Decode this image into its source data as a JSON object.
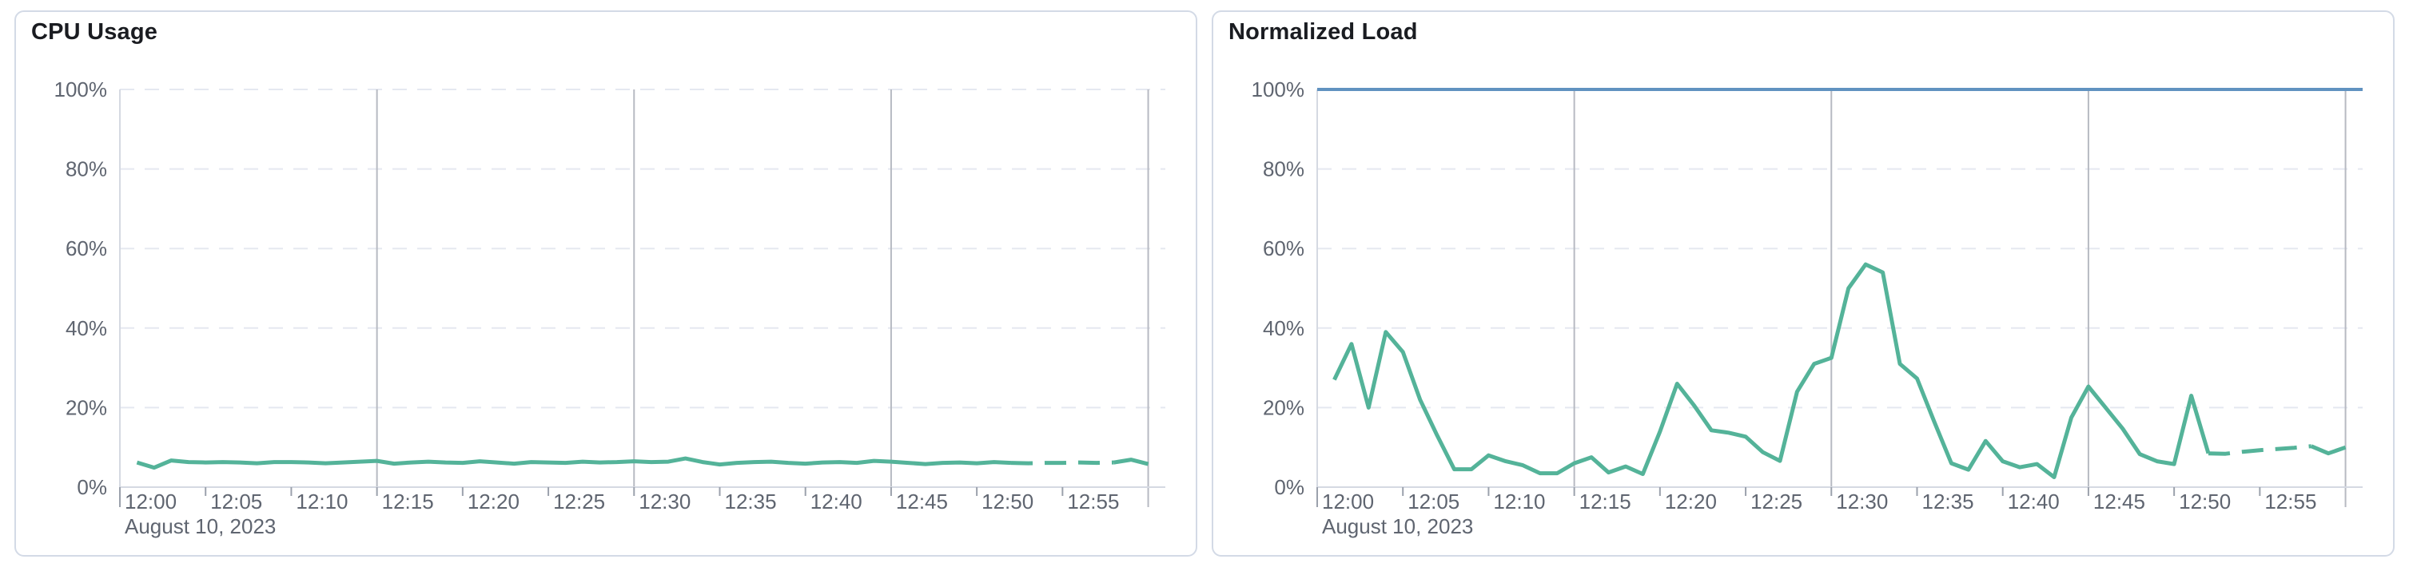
{
  "colors": {
    "accent_green": "#54B399",
    "limit_blue": "#6092C0",
    "grid_dashed": "#E5E8F0",
    "grid_major": "#B7BAC2",
    "axis_line": "#D5D9E2",
    "tick": "#9BA1AC",
    "label_text": "#5F6570",
    "title_text": "#1A1C21",
    "panel_border": "#D3DAE6"
  },
  "chart_data": [
    {
      "type": "line",
      "title": "CPU Usage",
      "x_date_label": "August 10, 2023",
      "x_unit": "minutes after 12:00",
      "x_domain_minutes": [
        0,
        61
      ],
      "ylim": [
        0,
        100
      ],
      "y_ticks": [
        0,
        20,
        40,
        60,
        80,
        100
      ],
      "y_tick_labels": [
        "0%",
        "20%",
        "40%",
        "60%",
        "80%",
        "100%"
      ],
      "x_tick_minutes": [
        0,
        5,
        10,
        15,
        20,
        25,
        30,
        35,
        40,
        45,
        50,
        55
      ],
      "x_tick_labels": [
        "12:00",
        "12:05",
        "12:10",
        "12:15",
        "12:20",
        "12:25",
        "12:30",
        "12:35",
        "12:40",
        "12:45",
        "12:50",
        "12:55"
      ],
      "major_gridline_minutes": [
        15,
        30,
        45,
        60
      ],
      "grid": "horizontal-dashed",
      "legend": "none",
      "series": [
        {
          "name": "cpu-usage",
          "color": "#54B399",
          "x_minutes": [
            1,
            2,
            3,
            4,
            5,
            6,
            7,
            8,
            9,
            10,
            11,
            12,
            13,
            14,
            15,
            16,
            17,
            18,
            19,
            20,
            21,
            22,
            23,
            24,
            25,
            26,
            27,
            28,
            29,
            30,
            31,
            32,
            33,
            34,
            35,
            36,
            37,
            38,
            39,
            40,
            41,
            42,
            43,
            44,
            45,
            46,
            47,
            48,
            49,
            50,
            51,
            52,
            53,
            54,
            55,
            56,
            57,
            58,
            59,
            60
          ],
          "values": [
            6.2,
            4.9,
            6.7,
            6.3,
            6.2,
            6.3,
            6.2,
            6.0,
            6.3,
            6.3,
            6.2,
            6.0,
            6.2,
            6.4,
            6.6,
            5.9,
            6.2,
            6.4,
            6.2,
            6.1,
            6.5,
            6.2,
            5.9,
            6.3,
            6.2,
            6.1,
            6.4,
            6.2,
            6.3,
            6.5,
            6.3,
            6.4,
            7.2,
            6.3,
            5.7,
            6.1,
            6.3,
            6.4,
            6.1,
            5.9,
            6.2,
            6.3,
            6.1,
            6.6,
            6.4,
            6.1,
            5.8,
            6.1,
            6.2,
            6.0,
            6.3,
            6.1,
            6.0,
            6.1,
            6.1,
            6.2,
            6.1,
            6.2,
            6.9,
            5.8
          ],
          "segments": [
            {
              "from_minute": 1,
              "to_minute": 52,
              "dashed": false
            },
            {
              "from_minute": 52,
              "to_minute": 58,
              "dashed": true
            },
            {
              "from_minute": 58,
              "to_minute": 60,
              "dashed": false
            }
          ]
        }
      ]
    },
    {
      "type": "line",
      "title": "Normalized Load",
      "x_date_label": "August 10, 2023",
      "x_unit": "minutes after 12:00",
      "x_domain_minutes": [
        0,
        61
      ],
      "ylim": [
        0,
        100
      ],
      "y_ticks": [
        0,
        20,
        40,
        60,
        80,
        100
      ],
      "y_tick_labels": [
        "0%",
        "20%",
        "40%",
        "60%",
        "80%",
        "100%"
      ],
      "x_tick_minutes": [
        0,
        5,
        10,
        15,
        20,
        25,
        30,
        35,
        40,
        45,
        50,
        55
      ],
      "x_tick_labels": [
        "12:00",
        "12:05",
        "12:10",
        "12:15",
        "12:20",
        "12:25",
        "12:30",
        "12:35",
        "12:40",
        "12:45",
        "12:50",
        "12:55"
      ],
      "major_gridline_minutes": [
        15,
        30,
        45,
        60
      ],
      "grid": "horizontal-dashed",
      "legend": "none",
      "series": [
        {
          "name": "normalized-load",
          "color": "#54B399",
          "x_minutes": [
            1,
            2,
            3,
            4,
            5,
            6,
            7,
            8,
            9,
            10,
            11,
            12,
            13,
            14,
            15,
            16,
            17,
            18,
            19,
            20,
            21,
            22,
            23,
            24,
            25,
            26,
            27,
            28,
            29,
            30,
            31,
            32,
            33,
            34,
            35,
            36,
            37,
            38,
            39,
            40,
            41,
            42,
            43,
            44,
            45,
            46,
            47,
            48,
            49,
            50,
            51,
            52,
            53,
            54,
            55,
            56,
            57,
            58,
            59,
            60
          ],
          "values": [
            27,
            36,
            20,
            39,
            34,
            22,
            13,
            4.5,
            4.5,
            8,
            6.5,
            5.5,
            3.5,
            3.5,
            6,
            7.5,
            3.7,
            5.2,
            3.3,
            14,
            26,
            20.5,
            14.3,
            13.7,
            12.7,
            8.8,
            6.6,
            24,
            31,
            32.5,
            50,
            56,
            54,
            31,
            27.3,
            16.5,
            6,
            4.4,
            11.6,
            6.5,
            5,
            5.8,
            2.5,
            17.5,
            25.3,
            20,
            14.7,
            8.3,
            6.5,
            5.8,
            23,
            8.5,
            8.4,
            8.9,
            9.3,
            9.6,
            9.9,
            10.3,
            8.5,
            10
          ],
          "segments": [
            {
              "from_minute": 1,
              "to_minute": 52,
              "dashed": false
            },
            {
              "from_minute": 52,
              "to_minute": 58,
              "dashed": true
            },
            {
              "from_minute": 58,
              "to_minute": 60,
              "dashed": false
            }
          ]
        },
        {
          "name": "limit-100pct",
          "color": "#6092C0",
          "constant": 100
        }
      ]
    }
  ]
}
